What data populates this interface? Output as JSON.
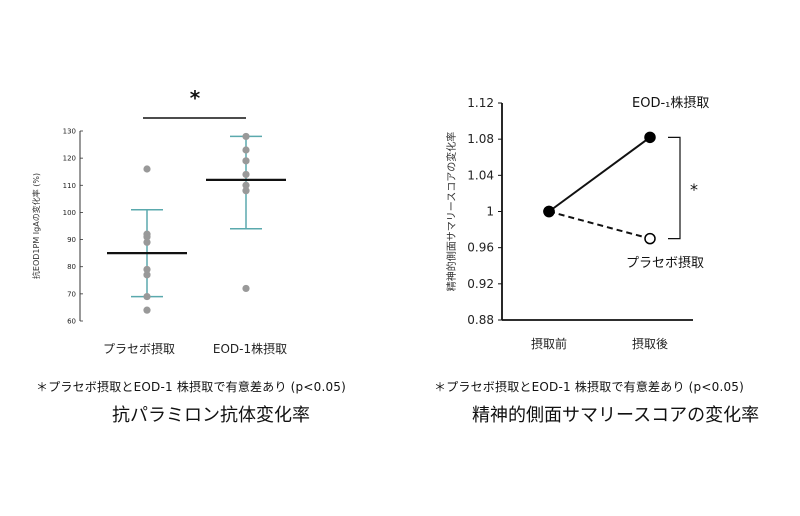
{
  "chart_data": [
    {
      "type": "scatter",
      "title": "抗パラミロン抗体変化率",
      "ylabel": "抗EOD1PM IgAの変化率 (%)",
      "ylim": [
        60,
        130
      ],
      "yticks": [
        60,
        70,
        80,
        90,
        100,
        110,
        120,
        130
      ],
      "categories": [
        "プラセボ摂取",
        "EOD-1株摂取"
      ],
      "points": [
        {
          "category": "プラセボ摂取",
          "values": [
            116,
            92,
            91,
            89,
            79,
            77,
            69,
            64
          ]
        },
        {
          "category": "EOD-1株摂取",
          "values": [
            128,
            123,
            119,
            114,
            110,
            108,
            72
          ]
        }
      ],
      "summary": [
        {
          "category": "プラセボ摂取",
          "mean": 85,
          "sd_upper": 101,
          "sd_lower": 69
        },
        {
          "category": "EOD-1株摂取",
          "mean": 112,
          "sd_upper": 128,
          "sd_lower": 94
        }
      ],
      "significance_mark": "*",
      "footnote": "＊プラセボ摂取とEOD-1 株摂取で有意差あり (p<0.05)",
      "colors": {
        "points": "#999999",
        "error_bars": "#5aa9ad",
        "mean": "#111111"
      }
    },
    {
      "type": "line",
      "title": "精神的側面サマリースコアの変化率",
      "ylabel": "精神的側面サマリースコアの変化率",
      "ylim": [
        0.88,
        1.12
      ],
      "yticks": [
        "0.88",
        "0.92",
        "0.96",
        "1",
        "1.04",
        "1.08",
        "1.12"
      ],
      "categories": [
        "摂取前",
        "摂取後"
      ],
      "series": [
        {
          "name": "EOD-₁株摂取",
          "values": [
            1.0,
            1.082
          ],
          "style": "solid",
          "marker": "filled"
        },
        {
          "name": "プラセボ摂取",
          "values": [
            1.0,
            0.97
          ],
          "style": "dashed",
          "marker": "open"
        }
      ],
      "significance_mark": "*",
      "footnote": "＊プラセボ摂取とEOD-1 株摂取で有意差あり (p<0.05)",
      "colors": {
        "lines": "#111111"
      }
    }
  ]
}
